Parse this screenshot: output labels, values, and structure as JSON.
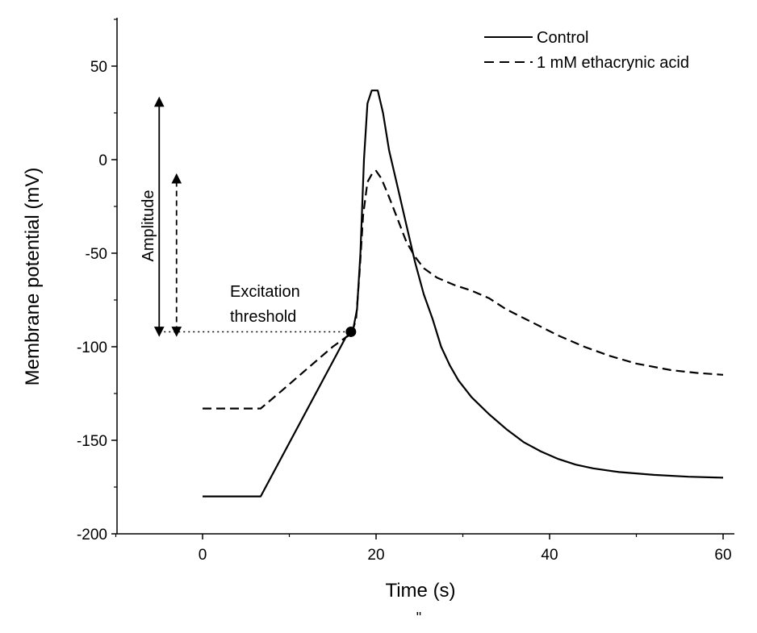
{
  "chart_data": {
    "type": "line",
    "xlabel": "Time (s)",
    "ylabel": "Membrane potential (mV)",
    "xlim": [
      -10,
      60
    ],
    "ylim": [
      -200,
      75
    ],
    "xticks": [
      0,
      20,
      40,
      60
    ],
    "yticks": [
      50,
      0,
      -50,
      -100,
      -150,
      -200
    ],
    "grid": false,
    "legend_position": "top-right",
    "series": [
      {
        "name": "Control",
        "style": "solid",
        "x": [
          0,
          6.7,
          16.5,
          17.3,
          17.8,
          18.2,
          18.6,
          19.0,
          19.5,
          20.2,
          20.8,
          21.5,
          22.5,
          23.5,
          24.5,
          25.5,
          26.5,
          27.5,
          28.5,
          29.5,
          31,
          33,
          35,
          37,
          39,
          41,
          43,
          45,
          48,
          52,
          56,
          60
        ],
        "y": [
          -180,
          -180,
          -95,
          -92,
          -80,
          -50,
          0,
          30,
          37,
          37,
          25,
          5,
          -15,
          -35,
          -55,
          -72,
          -85,
          -100,
          -110,
          -118,
          -127,
          -136,
          -144,
          -151,
          -156,
          -160,
          -163,
          -165,
          -167,
          -168.5,
          -169.5,
          -170
        ]
      },
      {
        "name": "1 mM ethacrynic acid",
        "style": "dashed",
        "x": [
          0,
          6.7,
          9,
          12,
          15,
          16.5,
          17.2,
          17.7,
          18.1,
          18.5,
          19.0,
          19.6,
          20.0,
          20.6,
          21.5,
          22.5,
          23.5,
          24.5,
          25.5,
          27,
          29,
          31,
          33,
          35,
          38,
          41,
          44,
          47,
          50,
          54,
          57,
          60
        ],
        "y": [
          -133,
          -133,
          -124,
          -112,
          -100,
          -95,
          -93,
          -85,
          -60,
          -30,
          -12,
          -7,
          -6,
          -10,
          -20,
          -32,
          -44,
          -52,
          -58,
          -63,
          -67,
          -70,
          -74,
          -80,
          -87,
          -94,
          -100,
          -105,
          -109,
          -112.5,
          -114,
          -115
        ]
      }
    ],
    "annotations": {
      "amplitude_label": "Amplitude",
      "threshold_label_line1": "Excitation",
      "threshold_label_line2": "threshold",
      "threshold_point": {
        "x": 17.1,
        "y": -92
      },
      "control_amplitude_arrow": {
        "x": -5,
        "y_from": -92,
        "y_to": 31
      },
      "treated_amplitude_arrow": {
        "x": -3,
        "y_from": -92,
        "y_to": -10
      }
    },
    "footnote": "\""
  }
}
